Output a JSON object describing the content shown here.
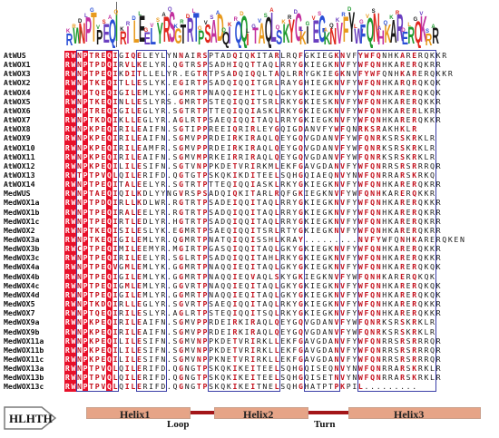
{
  "logo": {
    "consensus": "RWNPTPEQIRILEELYRSGTRTPSADQIQQITAQLSKYGKIEGKNVFYWFQNHKARERQKRR",
    "colors": [
      "#2a4fd6",
      "#1f9b2f",
      "#e0261c",
      "#c2309e",
      "#e89a1d",
      "#1a1a1a",
      "#6a3fc0"
    ]
  },
  "sequences": [
    {
      "name": "AtWUS",
      "residues": "RWNPTREQIGIQELEYLYNNAIRSPTADQIQKITARLRQFGKIEGKNVFYWFQNHKARERQKKR"
    },
    {
      "name": "AtWOX1",
      "residues": "RWNPTPDQIRVLKELYR.QGTRSPSADHIQQTTAQLRRYGKIEGKNVFYWFQNHKARERQKRR"
    },
    {
      "name": "AtWOX3",
      "residues": "RWNPTPEQIKDITLLELYR.EGTRTPSADQIQQLTAQLRRYGKIEGKNVFYWFQNHKARERQKKR"
    },
    {
      "name": "AtWOX2",
      "residues": "RWNPTKEQITLLESLYK.EGIRTPSADQIQQITGRLRAYGHIEGKNVFYWFQNHKARQRQKQK"
    },
    {
      "name": "AtWOX4",
      "residues": "RWNPTQEQIGILEMLYK.GGMRTPNAQQIEHITLQLGKYGKIEGKNVFYWFQNHKARERQKQK"
    },
    {
      "name": "AtWOX5",
      "residues": "RWNPTKEQINLLESLYRS.GMRTPSTEQIQQITSRLRKYGKIESKNVFYWFQNHKARERQKKR"
    },
    {
      "name": "AtWOX6",
      "residues": "RWNPTREQIGILEGLYR.SGTRTPTTEQIQQIASKLRKYGKIEGKNVFYWFQNHKARERLKRR"
    },
    {
      "name": "AtWOX7",
      "residues": "RWNPTKDQIKLLEGLYR.AGLRTPSAEQIQQITAQLRRYGKIEGKNVFYWFQNHKARERQKKR"
    },
    {
      "name": "AtWOX8",
      "residues": "RWNPKPEQIRILEAIFN.SGTIPPREEIQRIRLEYGQIGDANVFYWFQNRKSRAKHKLR"
    },
    {
      "name": "AtWOX9",
      "residues": "RWNPKPEQIRILEAIFN.SGMVPPRDEIRKIRAQLQEYGQVGDANVFYWFQNRKSRSKRKLR"
    },
    {
      "name": "AtWOX10",
      "residues": "RWNPKPEQIRILEAMFR.SGMVPPRDEIRKIRAQLQEYGQVGDANVFYWFQNRKSRSKRKLR"
    },
    {
      "name": "AtWOX11",
      "residues": "RWNPKPEQIRILEAIFN.SGMVMPRKEIRRIRAQLQEYGQVGDANVFYWFQNRKSRSKRKLR"
    },
    {
      "name": "AtWOX12",
      "residues": "RWNPKPEQILILESIFN.SGTVNPPKDETVRIRKMLEKFGAVGDANVFYWFQNRRSRSRRRQR"
    },
    {
      "name": "AtWOX13",
      "residues": "RWTPTPVQLQILERIFD.QGTGTPSKQKIKDITEELSQHGQIAEQNVYNWFQNRRARSKRKQ"
    },
    {
      "name": "AtWOX14",
      "residues": "RWNPTPEQITALEELYR.SGTRTPTTEQIQQIASKLRKYGKIEGKNVFYWFQNHKARERQKRR"
    },
    {
      "name": "MedWUS",
      "residues": "RWNPTAEQIQILKDLYYNGVRSPSADQIQKITARLRQFGKIEGKNVFYWFQNHKARERQKKR"
    },
    {
      "name": "MedWOX1a",
      "residues": "RWNPTPDQIRLLKDLWR.RGTRTPSADEIQQITAQLRRYGKIEGKNVFYWFQNHKARERQKKR"
    },
    {
      "name": "MedWOX1b",
      "residues": "RWNPTPEQIRALEELYR.RGTRTPSADQIQQITAQLRRYGKIEGKNVFYWFQNHKARERQKRR"
    },
    {
      "name": "MedWOX1c",
      "residues": "RWNPTPEQIRTLEDLYR.HGTRTPSADQIQQITAQLRRYGKIEGKNVFYWFQNHKARERQKRR"
    },
    {
      "name": "MedWOX2",
      "residues": "RWNPTKEQISILESLYK.EGMRTPSAEQIQQITSRLRTYGKIEGKNVFYWFQNHKARERQKRR"
    },
    {
      "name": "MedWOX3a",
      "residues": "RWNPTKEQIGILEMLYR.QGMRTPNATQIQQISSHLKRAY.........NVFYWFQNHKARERQKEN"
    },
    {
      "name": "MedWOX3b",
      "residues": "RWCPTPEQIMILEEMYR.MGIRTPGASQIQQITAQLGKYGKIEGKNVFYWFQNHKARERQKKR"
    },
    {
      "name": "MedWOX3c",
      "residues": "RWNPTPEQIRILEELYR.SGLRTPSADQIQQITAHLRKYGKIEGKNVFYWFQNHKARERQKKR"
    },
    {
      "name": "MedWOX4a",
      "residues": "RWNPTPEQVGMLEMLYK.GGMRTPNAQQIEQITAQLGKYGKIEGKNVFYWFQNHKARERQKQK"
    },
    {
      "name": "MedWOX4b",
      "residues": "RWNPTPEQIGILEMLYK.GGMRTPNAQQIEQVAQLSKYGKIEGKNVFYWFQNHKARERQKQK"
    },
    {
      "name": "MedWOX4c",
      "residues": "RWNPTPEQIGMLEMLYR.GGVRTPNAQQIEQITAQLGKYGKIEGKNVFYWFQNHKARERQKQK"
    },
    {
      "name": "MedWOX4d",
      "residues": "RWNPTPEQIGILEMLYR.GGMRTPNAQQIEQITAQLGKYGKIEGKNVFYWFQNHKARERQKQK"
    },
    {
      "name": "MedWOX5",
      "residues": "RWNPTKDQIRLLEGLYR.SGVRTPSAEQIQQITAQLRKYGKIEGKNVFYWFQNHKARERQKKR"
    },
    {
      "name": "MedWOX7",
      "residues": "RWNPTQEQIRILESLYR.AGLRTPSTEQIQQITSQLRKYGKIEGKNVFYWFQNHKARERQKKR"
    },
    {
      "name": "MedWOX9a",
      "residues": "RWNPKPEQIRILEAIFN.SGMVPPRDEIRKIRAQLQEYGQVGDANVFYWFQNRKSRSKRKLR"
    },
    {
      "name": "MedWOX9b",
      "residues": "RWNPKPEQIRILEAIFN.SGMVPPRDEIRKIRAQLQEYGQVGDANVFYWFQNRKSRSKRKLR"
    },
    {
      "name": "MedWOX11a",
      "residues": "RWNPKPEQILILESIFN.SGMVNPPKDETVRIRKLLEKFGAVGDANVFYWFQNRRSRSRRRQR"
    },
    {
      "name": "MedWOX11b",
      "residues": "RWNPKPEQILILESIFN.SGMVNPPKDETVRIRKLLEKFGAVGDANVFYWFQNRRSRSRRRQR"
    },
    {
      "name": "MedWOX11c",
      "residues": "RWNPKPEQILILESIFN.SGMVNPPKNETVRIRKLLEKFGAVGDANVFYWFQNRRSRSRRRQR"
    },
    {
      "name": "MedWOX13a",
      "residues": "RWNPTPVQLQILERIFD.QGNGTPSKQKIKEITEELSQHGQISEQNVYNWFQNRRARSKRKLR"
    },
    {
      "name": "MedWOX13b",
      "residues": "RWNPTPVQLQILERIFD.QGNGTPSKQKIKEITEELSQHGQISETNVYNWFQNRRARSKRKLR"
    },
    {
      "name": "MedWOX13c",
      "residues": "RWNPTPVQLQILERIFD.QGNGTPSKQKIKEITNELSQHGHATPTPKPIL........."
    }
  ],
  "structure": {
    "domain_label": "HLHTH",
    "helix1": "Helix1",
    "loop": "Loop",
    "helix2": "Helix2",
    "turn": "Turn",
    "helix3": "Helix3",
    "helix_color": "#e6a487",
    "link_color": "#a31518"
  },
  "colors": {
    "identical_bg": "#e8102a",
    "similar_fg": "#c4121e",
    "box_border": "#3b3fa8"
  }
}
